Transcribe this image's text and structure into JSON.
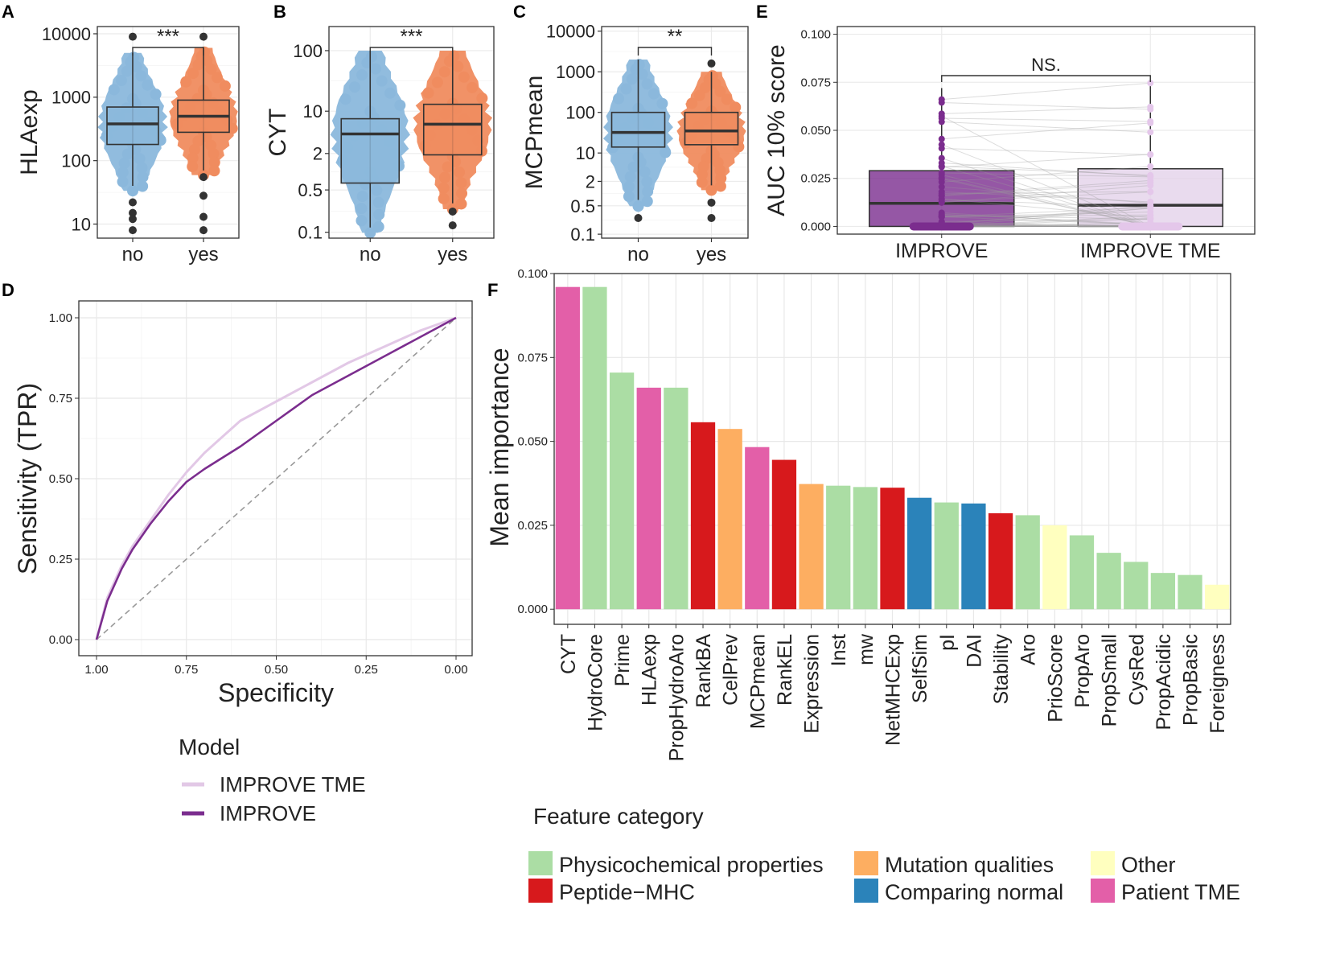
{
  "chart_data": [
    {
      "panel": "A",
      "type": "box",
      "ylabel": "HLAexp",
      "yscale": "log10",
      "ylim": [
        6,
        13000
      ],
      "yticks": [
        10,
        100,
        1000,
        10000
      ],
      "ytick_labels": [
        "10",
        "100",
        "1000",
        "10000"
      ],
      "categories": [
        "no",
        "yes"
      ],
      "colors": [
        "#8bb8dc",
        "#f08c5f"
      ],
      "boxes": [
        {
          "min": 40,
          "q1": 180,
          "median": 380,
          "q3": 700,
          "max": 5000,
          "outliers": [
            9000,
            22,
            15,
            12,
            8
          ]
        },
        {
          "min": 70,
          "q1": 280,
          "median": 500,
          "q3": 900,
          "max": 6000,
          "outliers": [
            9000,
            55,
            28,
            13,
            8
          ]
        }
      ],
      "significance": "***"
    },
    {
      "panel": "B",
      "type": "box",
      "ylabel": "CYT",
      "yscale": "log10",
      "ylim": [
        0.08,
        250
      ],
      "yticks": [
        0.1,
        0.5,
        2,
        10,
        100
      ],
      "ytick_labels": [
        "0.1",
        "0.5",
        "2",
        "10",
        "100"
      ],
      "categories": [
        "no",
        "yes"
      ],
      "colors": [
        "#8bb8dc",
        "#f08c5f"
      ],
      "boxes": [
        {
          "min": 0.12,
          "q1": 0.65,
          "median": 4.2,
          "q3": 7.5,
          "max": 100,
          "outliers": []
        },
        {
          "min": 0.3,
          "q1": 1.9,
          "median": 6.1,
          "q3": 13,
          "max": 100,
          "outliers": [
            0.22,
            0.13
          ]
        }
      ],
      "significance": "***"
    },
    {
      "panel": "C",
      "type": "box",
      "ylabel": "MCPmean",
      "yscale": "log10",
      "ylim": [
        0.08,
        13000
      ],
      "yticks": [
        0.1,
        0.5,
        2,
        10,
        100,
        1000,
        10000
      ],
      "ytick_labels": [
        "0.1",
        "0.5",
        "2",
        "10",
        "100",
        "1000",
        "10000"
      ],
      "categories": [
        "no",
        "yes"
      ],
      "colors": [
        "#8bb8dc",
        "#f08c5f"
      ],
      "boxes": [
        {
          "min": 0.7,
          "q1": 14,
          "median": 32,
          "q3": 100,
          "max": 2000,
          "outliers": [
            0.25
          ]
        },
        {
          "min": 1.6,
          "q1": 16,
          "median": 35,
          "q3": 100,
          "max": 1000,
          "outliers": [
            1600,
            0.6,
            0.25
          ]
        }
      ],
      "significance": "**"
    },
    {
      "panel": "E",
      "type": "box",
      "ylabel": "AUC 10% score",
      "ylim": [
        -0.004,
        0.104
      ],
      "yticks": [
        0.0,
        0.025,
        0.05,
        0.075,
        0.1
      ],
      "ytick_labels": [
        "0.000",
        "0.025",
        "0.050",
        "0.075",
        "0.100"
      ],
      "categories": [
        "IMPROVE",
        "IMPROVE TME"
      ],
      "colors": [
        "#7b2d8e",
        "#e4d2ea"
      ],
      "boxes": [
        {
          "min": 0.0,
          "q1": 0.0,
          "median": 0.012,
          "q3": 0.029,
          "max": 0.072
        },
        {
          "min": 0.0,
          "q1": 0.0,
          "median": 0.011,
          "q3": 0.03,
          "max": 0.075
        }
      ],
      "significance": "NS."
    },
    {
      "panel": "D",
      "type": "line",
      "xlabel": "Specificity",
      "ylabel": "Sensitivity (TPR)",
      "xlim": [
        1.0,
        0.0
      ],
      "ylim": [
        0.0,
        1.0
      ],
      "xticks": [
        1.0,
        0.75,
        0.5,
        0.25,
        0.0
      ],
      "xtick_labels": [
        "1.00",
        "0.75",
        "0.50",
        "0.25",
        "0.00"
      ],
      "yticks": [
        0.0,
        0.25,
        0.5,
        0.75,
        1.0
      ],
      "ytick_labels": [
        "0.00",
        "0.25",
        "0.50",
        "0.75",
        "1.00"
      ],
      "legend_title": "Model",
      "series": [
        {
          "name": "IMPROVE TME",
          "color": "#e2c8e6",
          "points": [
            [
              1.0,
              0.0
            ],
            [
              0.97,
              0.13
            ],
            [
              0.93,
              0.23
            ],
            [
              0.9,
              0.29
            ],
            [
              0.85,
              0.37
            ],
            [
              0.8,
              0.45
            ],
            [
              0.75,
              0.52
            ],
            [
              0.7,
              0.58
            ],
            [
              0.65,
              0.63
            ],
            [
              0.6,
              0.68
            ],
            [
              0.5,
              0.74
            ],
            [
              0.4,
              0.8
            ],
            [
              0.3,
              0.86
            ],
            [
              0.2,
              0.91
            ],
            [
              0.1,
              0.96
            ],
            [
              0.0,
              1.0
            ]
          ]
        },
        {
          "name": "IMPROVE",
          "color": "#7b2d8e",
          "points": [
            [
              1.0,
              0.0
            ],
            [
              0.97,
              0.12
            ],
            [
              0.93,
              0.22
            ],
            [
              0.9,
              0.28
            ],
            [
              0.85,
              0.36
            ],
            [
              0.8,
              0.43
            ],
            [
              0.75,
              0.49
            ],
            [
              0.7,
              0.53
            ],
            [
              0.6,
              0.6
            ],
            [
              0.5,
              0.68
            ],
            [
              0.4,
              0.76
            ],
            [
              0.3,
              0.82
            ],
            [
              0.2,
              0.88
            ],
            [
              0.1,
              0.94
            ],
            [
              0.0,
              1.0
            ]
          ]
        }
      ],
      "reference_line": "diagonal"
    },
    {
      "panel": "F",
      "type": "bar",
      "ylabel": "Mean importance",
      "ylim": [
        -0.0045,
        0.1
      ],
      "yticks": [
        0.0,
        0.025,
        0.05,
        0.075,
        0.1
      ],
      "ytick_labels": [
        "0.000",
        "0.025",
        "0.050",
        "0.075",
        "0.100"
      ],
      "categories": [
        "CYT",
        "HydroCore",
        "Prime",
        "HLAexp",
        "PropHydroAro",
        "RankBA",
        "CelPrev",
        "MCPmean",
        "RankEL",
        "Expression",
        "Inst",
        "mw",
        "NetMHCExp",
        "SelfSim",
        "pI",
        "DAI",
        "Stability",
        "Aro",
        "PrioScore",
        "PropAro",
        "PropSmall",
        "CysRed",
        "PropAcidic",
        "PropBasic",
        "Foreigness"
      ],
      "values": [
        0.096,
        0.096,
        0.0705,
        0.066,
        0.066,
        0.0557,
        0.0537,
        0.0483,
        0.0445,
        0.0373,
        0.0368,
        0.0364,
        0.0362,
        0.0332,
        0.0318,
        0.0315,
        0.0286,
        0.028,
        0.025,
        0.022,
        0.0168,
        0.0141,
        0.0108,
        0.0102,
        0.0073
      ],
      "feature_category": [
        "Patient TME",
        "Physicochemical properties",
        "Physicochemical properties",
        "Patient TME",
        "Physicochemical properties",
        "Peptide-MHC",
        "Mutation qualities",
        "Patient TME",
        "Peptide-MHC",
        "Mutation qualities",
        "Physicochemical properties",
        "Physicochemical properties",
        "Peptide-MHC",
        "Comparing normal",
        "Physicochemical properties",
        "Comparing normal",
        "Peptide-MHC",
        "Physicochemical properties",
        "Other",
        "Physicochemical properties",
        "Physicochemical properties",
        "Physicochemical properties",
        "Physicochemical properties",
        "Physicochemical properties",
        "Other"
      ],
      "legend_title": "Feature category",
      "legend": [
        {
          "name": "Physicochemical properties",
          "color": "#abdda4"
        },
        {
          "name": "Mutation qualities",
          "color": "#fdae61"
        },
        {
          "name": "Other",
          "color": "#ffffbf"
        },
        {
          "name": "Peptide−MHC",
          "color": "#d7191c"
        },
        {
          "name": "Comparing normal",
          "color": "#2b83ba"
        },
        {
          "name": "Patient TME",
          "color": "#e35fa8"
        }
      ]
    }
  ]
}
